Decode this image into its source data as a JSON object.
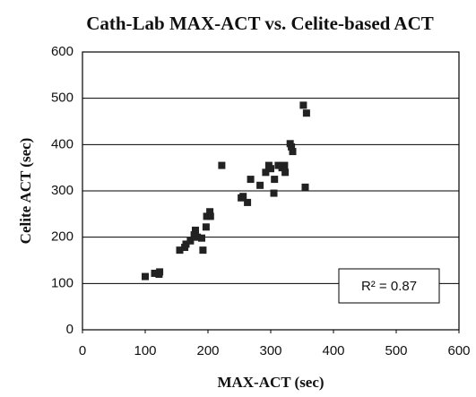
{
  "chart_data": {
    "type": "scatter",
    "title": "Cath-Lab MAX-ACT vs. Celite-based ACT",
    "x_label": "MAX-ACT (sec)",
    "y_label": "Celite ACT (sec)",
    "annotation": "R² = 0.87",
    "color": "#222222",
    "grid": true,
    "x": [
      100,
      115,
      122,
      123,
      155,
      163,
      165,
      172,
      178,
      180,
      183,
      190,
      192,
      197,
      198,
      203,
      204,
      222,
      253,
      256,
      263,
      268,
      283,
      292,
      297,
      300,
      305,
      306,
      312,
      318,
      323,
      322,
      331,
      333,
      335,
      352,
      357,
      355
    ],
    "values": [
      115,
      122,
      120,
      125,
      172,
      178,
      185,
      192,
      205,
      215,
      200,
      198,
      172,
      222,
      245,
      255,
      245,
      355,
      285,
      288,
      275,
      325,
      312,
      340,
      355,
      348,
      295,
      325,
      355,
      350,
      340,
      355,
      402,
      395,
      385,
      485,
      468,
      308
    ],
    "xlim": [
      0,
      600
    ],
    "xticks": [
      0,
      100,
      200,
      300,
      400,
      500,
      600
    ],
    "ylim": [
      0,
      600
    ],
    "yticks": [
      0,
      100,
      200,
      300,
      400,
      500,
      600
    ]
  }
}
